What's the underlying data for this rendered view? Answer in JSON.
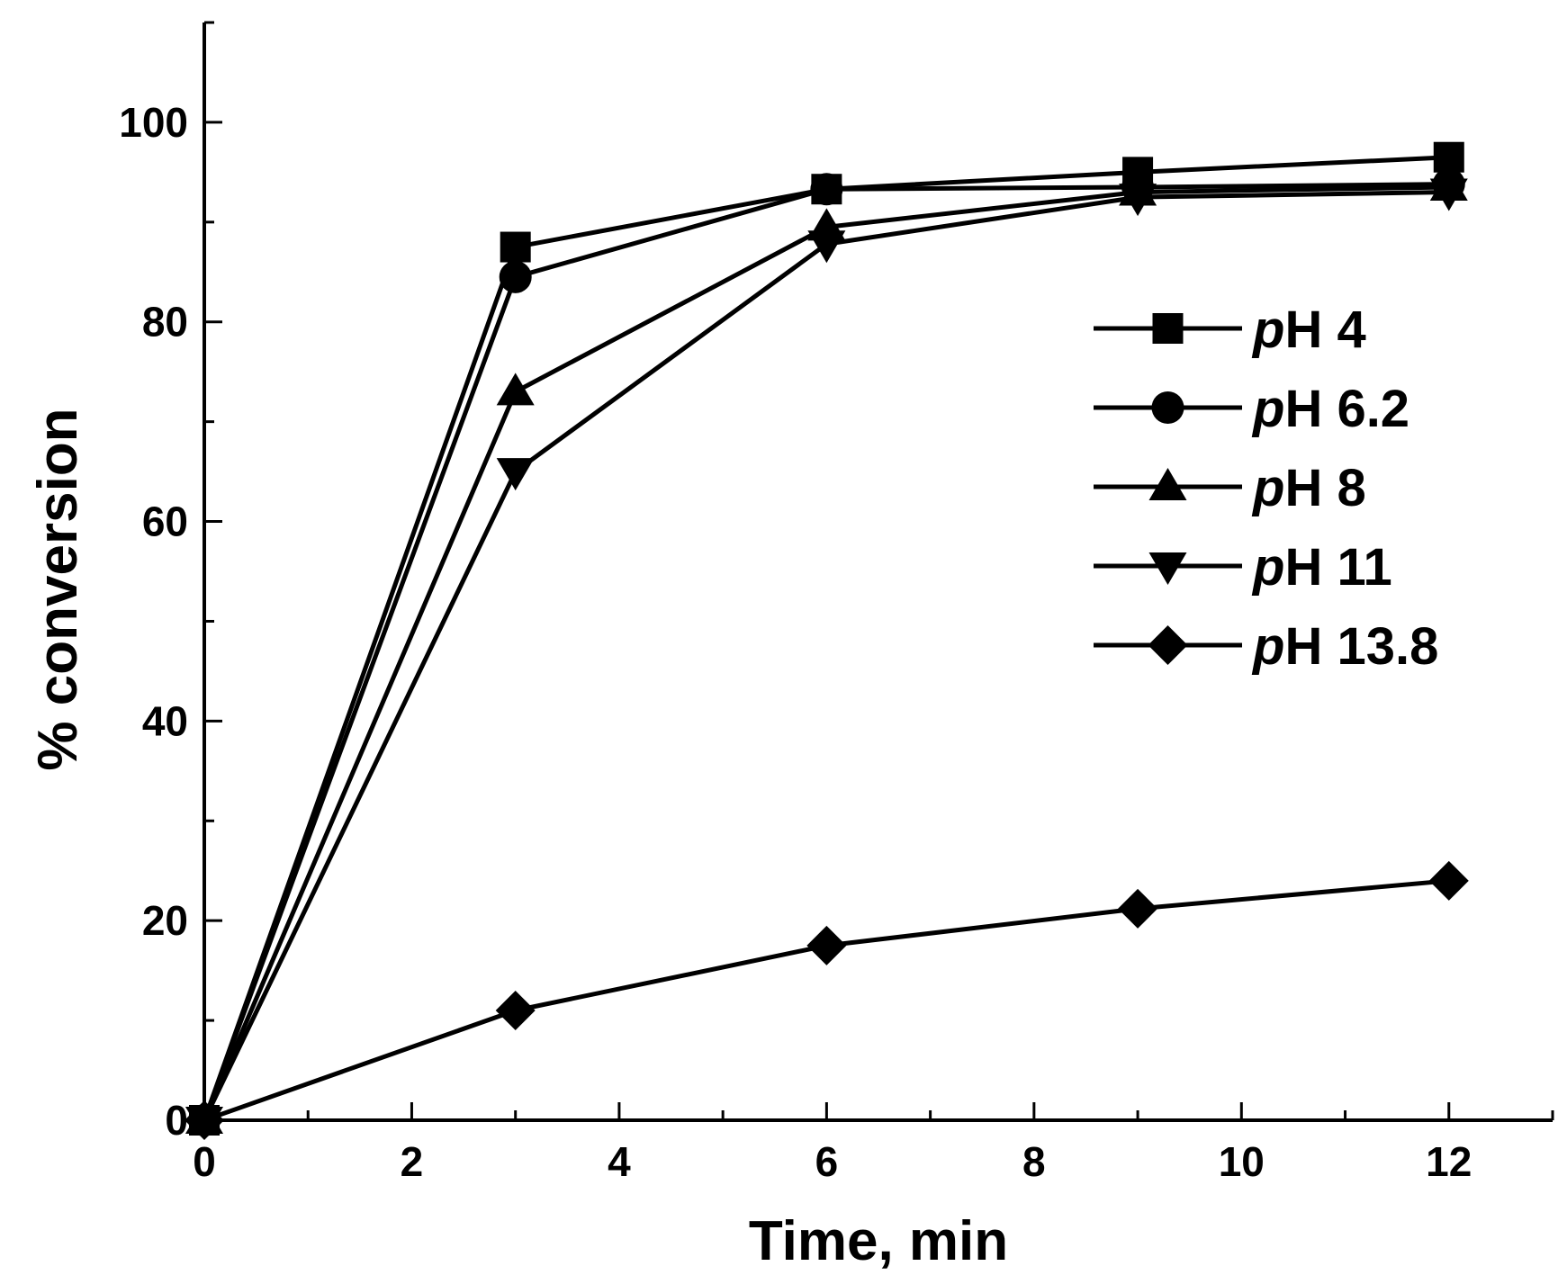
{
  "chart_data": {
    "type": "line",
    "title": "",
    "xlabel": "Time, min",
    "ylabel": "% conversion",
    "xlim": [
      0,
      13
    ],
    "ylim": [
      0,
      110
    ],
    "x_major_ticks": [
      0,
      2,
      4,
      6,
      8,
      10,
      12
    ],
    "x_minor_ticks": [
      1,
      3,
      5,
      7,
      9,
      11,
      13
    ],
    "y_major_ticks": [
      0,
      20,
      40,
      60,
      80,
      100
    ],
    "y_minor_ticks": [
      10,
      30,
      50,
      70,
      90,
      110
    ],
    "x_tick_labels": [
      "0",
      "2",
      "4",
      "6",
      "8",
      "10",
      "12"
    ],
    "y_tick_labels": [
      "0",
      "20",
      "40",
      "60",
      "80",
      "100"
    ],
    "grid": false,
    "legend_position": "center-right",
    "x": [
      0,
      3,
      6,
      9,
      12
    ],
    "series": [
      {
        "name": "pH 4",
        "label_prefix": "p",
        "label_rest": "H 4",
        "marker": "square",
        "values": [
          0,
          87.5,
          93.3,
          95.0,
          96.5
        ]
      },
      {
        "name": "pH 6.2",
        "label_prefix": "p",
        "label_rest": "H 6.2",
        "marker": "circle",
        "values": [
          0,
          84.5,
          93.3,
          93.5,
          93.8
        ]
      },
      {
        "name": "pH 8",
        "label_prefix": "p",
        "label_rest": "H 8",
        "marker": "triangle-up",
        "values": [
          0,
          73.0,
          89.5,
          93.0,
          93.5
        ]
      },
      {
        "name": "pH 11",
        "label_prefix": "p",
        "label_rest": "H 11",
        "marker": "triangle-down",
        "values": [
          0,
          65.0,
          87.8,
          92.5,
          93.0
        ]
      },
      {
        "name": "pH 13.8",
        "label_prefix": "p",
        "label_rest": "H 13.8",
        "marker": "diamond",
        "values": [
          0,
          11.0,
          17.5,
          21.2,
          24.0
        ]
      }
    ],
    "colors": {
      "line": "#000000",
      "background": "#ffffff"
    }
  }
}
